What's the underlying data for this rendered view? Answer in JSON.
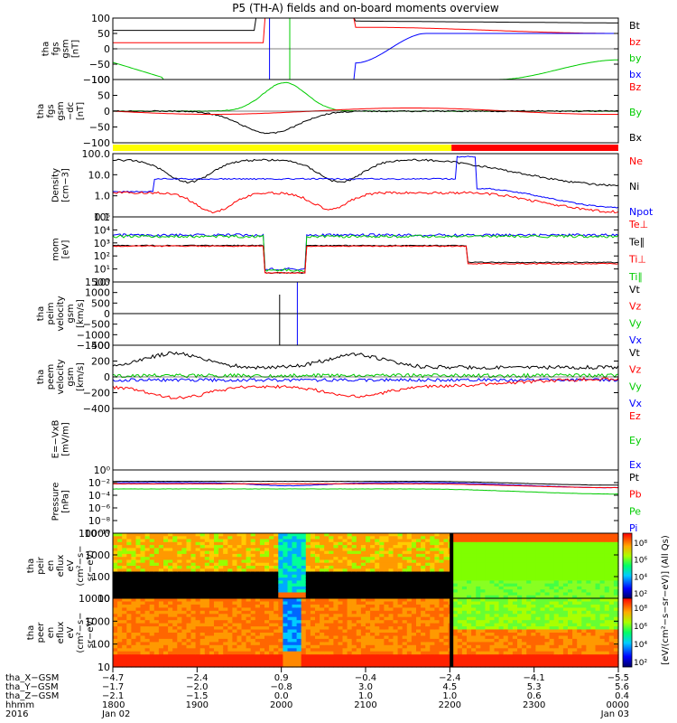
{
  "title": "P5 (TH-A) fields and on-board moments overview",
  "chart_data": {
    "type": "line",
    "title": "P5 (TH-A) fields and on-board moments overview",
    "panels": [
      {
        "id": "fgs",
        "ylabel": [
          "tha",
          "fgs",
          "gsm",
          "[nT]"
        ],
        "yticks": [
          "100",
          "50",
          "0",
          "−50",
          "−100"
        ],
        "ylim": [
          -100,
          100
        ],
        "legend": [
          {
            "label": "Bt",
            "color": "#000000"
          },
          {
            "label": "bz",
            "color": "#ff0000"
          },
          {
            "label": "by",
            "color": "#00cc00"
          },
          {
            "label": "bx",
            "color": "#0000ff"
          }
        ]
      },
      {
        "id": "fgs_dc",
        "ylabel": [
          "tha",
          "fgs",
          "gsm",
          "−dc",
          "[nT]"
        ],
        "yticks": [
          "100",
          "50",
          "0",
          "−50",
          "−100"
        ],
        "ylim": [
          -125,
          125
        ],
        "legend": [
          {
            "label": "Bz",
            "color": "#ff0000"
          },
          {
            "label": "By",
            "color": "#00cc00"
          },
          {
            "label": "Bx",
            "color": "#000000"
          }
        ]
      },
      {
        "id": "density",
        "ylabel": [
          "Density",
          "[cm−3]"
        ],
        "yticks": [
          "100.0",
          "10.0",
          "1.0",
          "0.1"
        ],
        "scale": "log",
        "legend": [
          {
            "label": "Ne",
            "color": "#ff0000"
          },
          {
            "label": "Ni",
            "color": "#000000"
          },
          {
            "label": "Npot",
            "color": "#0000ff"
          }
        ]
      },
      {
        "id": "temperature",
        "ylabel": [
          "mom",
          "[eV]"
        ],
        "yticks": [
          "10⁵",
          "10⁴",
          "10³",
          "10²",
          "10¹",
          "10⁰"
        ],
        "scale": "log",
        "legend": [
          {
            "label": "Te⊥",
            "color": "#ff0000"
          },
          {
            "label": "Te∥",
            "color": "#000000"
          },
          {
            "label": "Ti⊥",
            "color": "#ff0000"
          },
          {
            "label": "Ti∥",
            "color": "#00cc00"
          }
        ]
      },
      {
        "id": "peim",
        "ylabel": [
          "tha",
          "peim",
          "velocity",
          "gsm",
          "[km/s]"
        ],
        "yticks": [
          "1500",
          "1000",
          "500",
          "0",
          "−500",
          "−1000",
          "−1500"
        ],
        "ylim": [
          -1500,
          1500
        ],
        "legend": [
          {
            "label": "Vt",
            "color": "#000000"
          },
          {
            "label": "Vz",
            "color": "#ff0000"
          },
          {
            "label": "Vy",
            "color": "#00cc00"
          },
          {
            "label": "Vx",
            "color": "#0000ff"
          }
        ]
      },
      {
        "id": "peem",
        "ylabel": [
          "tha",
          "peem",
          "velocity",
          "gsm",
          "[km/s]"
        ],
        "yticks": [
          "400",
          "200",
          "0",
          "−200",
          "−400"
        ],
        "ylim": [
          -400,
          400
        ],
        "legend": [
          {
            "label": "Vt",
            "color": "#000000"
          },
          {
            "label": "Vz",
            "color": "#ff0000"
          },
          {
            "label": "Vy",
            "color": "#00cc00"
          },
          {
            "label": "Vx",
            "color": "#0000ff"
          }
        ]
      },
      {
        "id": "efield",
        "ylabel": [
          "E=−VxB",
          "[mV/m]"
        ],
        "yticks": [],
        "legend": [
          {
            "label": "Ez",
            "color": "#ff0000"
          },
          {
            "label": "Ey",
            "color": "#00cc00"
          },
          {
            "label": "Ex",
            "color": "#0000ff"
          }
        ]
      },
      {
        "id": "pressure",
        "ylabel": [
          "Pressure",
          "[nPa]"
        ],
        "yticks": [
          "10⁰",
          "10⁻²",
          "10⁻⁴",
          "10⁻⁶",
          "10⁻⁸",
          "10⁻¹⁰"
        ],
        "scale": "log",
        "legend": [
          {
            "label": "Pt",
            "color": "#000000"
          },
          {
            "label": "Pb",
            "color": "#ff0000"
          },
          {
            "label": "Pe",
            "color": "#00cc00"
          },
          {
            "label": "Pi",
            "color": "#0000ff"
          }
        ]
      },
      {
        "id": "peir",
        "ylabel": [
          "tha",
          "peir",
          "en",
          "eflux",
          "eV",
          "(cm²−s−",
          "sr−eV)"
        ],
        "yticks": [
          "10000",
          "1000",
          "100",
          "10"
        ],
        "scale": "log",
        "type": "heatmap"
      },
      {
        "id": "peer",
        "ylabel": [
          "tha",
          "peer",
          "en",
          "eflux",
          "eV",
          "(cm²−s−",
          "sr−eV)"
        ],
        "yticks": [
          "10000",
          "1000",
          "100",
          "10"
        ],
        "scale": "log",
        "type": "heatmap"
      }
    ],
    "mode_bar": {
      "colors": [
        "#ffff00",
        "#ff0000"
      ],
      "switch_fraction": 0.67
    },
    "colorbar": {
      "label": "[eV/(cm²−s−sr−eV)] (All Qs)",
      "ticks_top": [
        "10⁸",
        "10⁶",
        "10⁴",
        "10²"
      ],
      "ticks_bottom": [
        "10⁸",
        "10⁶",
        "10⁴",
        "10²"
      ]
    },
    "xaxis": {
      "row_labels": [
        "tha_X−GSM",
        "tha_Y−GSM",
        "tha_Z−GSM",
        "hhmm",
        "2016"
      ],
      "ticks": [
        {
          "x": "−4.7",
          "y": "−1.7",
          "z": "−2.1",
          "t": "1800",
          "d": "Jan 02"
        },
        {
          "x": "−2.4",
          "y": "−2.0",
          "z": "−1.5",
          "t": "1900",
          "d": ""
        },
        {
          "x": "0.9",
          "y": "−0.8",
          "z": "0.0",
          "t": "2000",
          "d": ""
        },
        {
          "x": "−0.4",
          "y": "3.0",
          "z": "1.0",
          "t": "2100",
          "d": ""
        },
        {
          "x": "−2.4",
          "y": "4.5",
          "z": "1.0",
          "t": "2200",
          "d": ""
        },
        {
          "x": "−4.1",
          "y": "5.3",
          "z": "0.6",
          "t": "2300",
          "d": ""
        },
        {
          "x": "−5.5",
          "y": "5.6",
          "z": "0.4",
          "t": "0000",
          "d": "Jan 03"
        }
      ]
    }
  }
}
